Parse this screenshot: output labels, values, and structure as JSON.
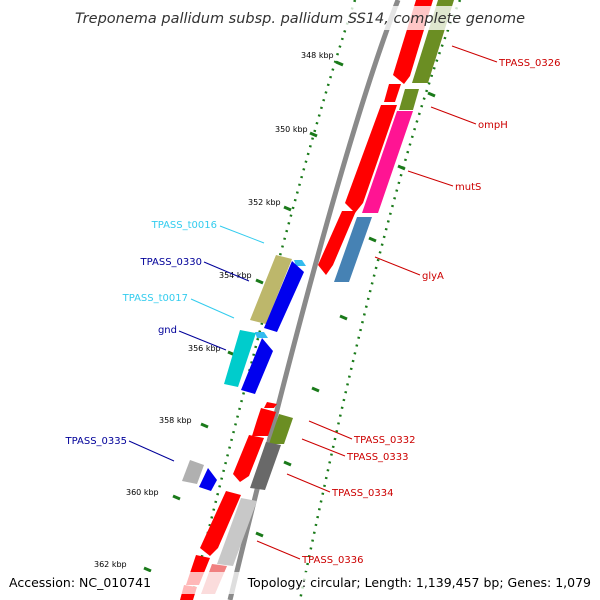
{
  "title": "Treponema pallidum subsp. pallidum SS14, complete genome",
  "footer": {
    "accession": "Accession: NC_010741",
    "summary": "Topology: circular; Length: 1,139,457 bp; Genes: 1,079"
  },
  "ticks": [
    {
      "label": "348 kbp"
    },
    {
      "label": "350 kbp"
    },
    {
      "label": "352 kbp"
    },
    {
      "label": "354 kbp"
    },
    {
      "label": "356 kbp"
    },
    {
      "label": "358 kbp"
    },
    {
      "label": "360 kbp"
    },
    {
      "label": "362 kbp"
    }
  ],
  "features": [
    {
      "name": "TPASS_0326",
      "strand": "forward",
      "color": "#cc0000"
    },
    {
      "name": "ompH",
      "strand": "forward",
      "color": "#cc0000"
    },
    {
      "name": "mutS",
      "strand": "forward",
      "color": "#cc0000"
    },
    {
      "name": "glyA",
      "strand": "forward",
      "color": "#cc0000"
    },
    {
      "name": "TPASS_t0016",
      "strand": "reverse",
      "color": "#33ccee"
    },
    {
      "name": "TPASS_0330",
      "strand": "reverse",
      "color": "#000099"
    },
    {
      "name": "TPASS_t0017",
      "strand": "reverse",
      "color": "#33ccee"
    },
    {
      "name": "gnd",
      "strand": "reverse",
      "color": "#000099"
    },
    {
      "name": "TPASS_0332",
      "strand": "forward",
      "color": "#cc0000"
    },
    {
      "name": "TPASS_0333",
      "strand": "forward",
      "color": "#cc0000"
    },
    {
      "name": "TPASS_0334",
      "strand": "forward",
      "color": "#cc0000"
    },
    {
      "name": "TPASS_0335",
      "strand": "reverse",
      "color": "#000099"
    },
    {
      "name": "TPASS_0336",
      "strand": "forward",
      "color": "#cc0000"
    }
  ],
  "colors": {
    "cds": "#ff0000",
    "cds_reverse": "#0000ee",
    "trna": "#00cccc",
    "cog_olive": "#6b8e23",
    "cog_magenta": "#ff1493",
    "cog_steelblue": "#4682b4",
    "cog_khaki": "#bdb76b",
    "cog_gray": "#a9a9a9",
    "backbone": "#888888",
    "tick_green": "#1a7a1a"
  }
}
